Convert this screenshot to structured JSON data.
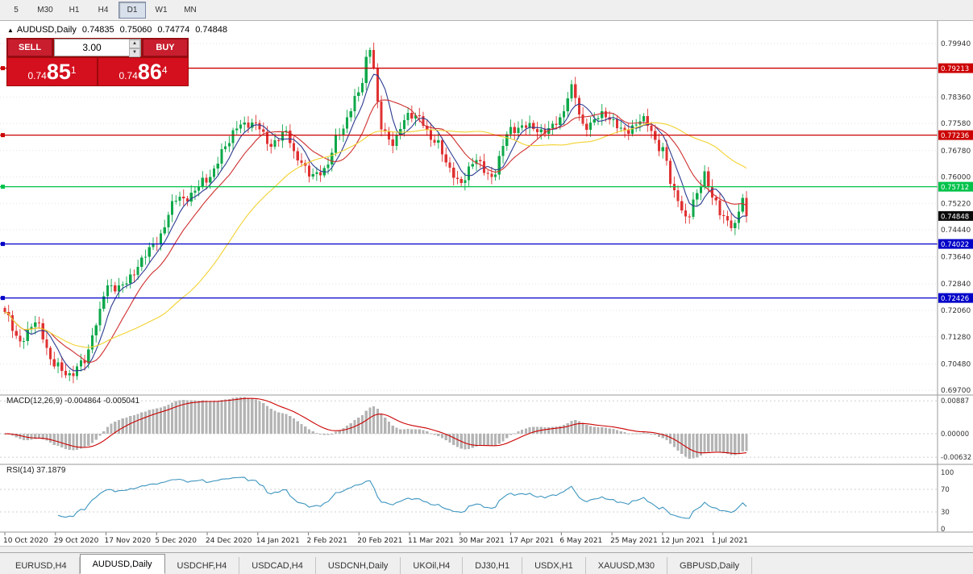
{
  "toolbar": {
    "timeframes": [
      "5",
      "M30",
      "H1",
      "H4",
      "D1",
      "W1",
      "MN"
    ],
    "active": "D1"
  },
  "chart_header": {
    "symbol": "AUDUSD,Daily",
    "open": "0.74835",
    "high": "0.75060",
    "low": "0.74774",
    "close": "0.74848"
  },
  "trade_panel": {
    "sell_label": "SELL",
    "buy_label": "BUY",
    "volume": "3.00",
    "sell_price": {
      "small": "0.74",
      "big": "85",
      "sup": "1"
    },
    "buy_price": {
      "small": "0.74",
      "big": "86",
      "sup": "4"
    }
  },
  "indicators": {
    "macd_header": "MACD(12,26,9) -0.004864 -0.005041",
    "rsi_header": "RSI(14) 37.1879"
  },
  "tabs": {
    "items": [
      "EURUSD,H4",
      "AUDUSD,Daily",
      "USDCHF,H4",
      "USDCAD,H4",
      "USDCNH,Daily",
      "UKOil,H4",
      "DJ30,H1",
      "USDX,H1",
      "XAUUSD,M30",
      "GBPUSD,Daily"
    ],
    "active": "AUDUSD,Daily"
  },
  "chart_data": {
    "type": "candlestick",
    "symbol": "AUDUSD",
    "timeframe": "Daily",
    "up_color": "#0ea84a",
    "down_color": "#e03232",
    "price_range": {
      "top": 0.8056,
      "bottom": 0.6956
    },
    "y_axis_ticks": [
      0.7994,
      0.7836,
      0.7758,
      0.7678,
      0.76,
      0.7522,
      0.7444,
      0.7364,
      0.7284,
      0.7206,
      0.7128,
      0.7048,
      0.697
    ],
    "x_labels": [
      "10 Oct 2020",
      "29 Oct 2020",
      "17 Nov 2020",
      "5 Dec 2020",
      "24 Dec 2020",
      "14 Jan 2021",
      "2 Feb 2021",
      "20 Feb 2021",
      "11 Mar 2021",
      "30 Mar 2021",
      "17 Apr 2021",
      "6 May 2021",
      "25 May 2021",
      "12 Jun 2021",
      "1 Jul 2021"
    ],
    "levels": [
      {
        "price": 0.79213,
        "color": "#cc0000",
        "label": "0.79213"
      },
      {
        "price": 0.77236,
        "color": "#cc0000",
        "label": "0.77236"
      },
      {
        "price": 0.75712,
        "color": "#00c24a",
        "label": "0.75712"
      },
      {
        "price": 0.74022,
        "color": "#0000c8",
        "label": "0.74022"
      },
      {
        "price": 0.72426,
        "color": "#0000c8",
        "label": "0.72426"
      }
    ],
    "current_price": {
      "value": 0.74848,
      "label": "0.74848"
    },
    "candles": {
      "count": 196,
      "noise": [
        0.0009,
        0.0012
      ],
      "anchors": [
        [
          0,
          0.719
        ],
        [
          4,
          0.7125
        ],
        [
          8,
          0.716
        ],
        [
          13,
          0.706
        ],
        [
          17,
          0.7
        ],
        [
          21,
          0.707
        ],
        [
          24,
          0.7165
        ],
        [
          27,
          0.727
        ],
        [
          33,
          0.73
        ],
        [
          40,
          0.742
        ],
        [
          46,
          0.754
        ],
        [
          53,
          0.758
        ],
        [
          58,
          0.77
        ],
        [
          62,
          0.7745
        ],
        [
          66,
          0.777
        ],
        [
          70,
          0.768
        ],
        [
          74,
          0.7745
        ],
        [
          77,
          0.765
        ],
        [
          80,
          0.76
        ],
        [
          84,
          0.763
        ],
        [
          88,
          0.772
        ],
        [
          93,
          0.786
        ],
        [
          96,
          0.797
        ],
        [
          99,
          0.775
        ],
        [
          102,
          0.771
        ],
        [
          106,
          0.777
        ],
        [
          109,
          0.7785
        ],
        [
          113,
          0.77
        ],
        [
          117,
          0.7625
        ],
        [
          120,
          0.759
        ],
        [
          124,
          0.764
        ],
        [
          128,
          0.761
        ],
        [
          133,
          0.773
        ],
        [
          137,
          0.7765
        ],
        [
          141,
          0.772
        ],
        [
          146,
          0.778
        ],
        [
          149,
          0.7855
        ],
        [
          152,
          0.775
        ],
        [
          156,
          0.7785
        ],
        [
          160,
          0.7755
        ],
        [
          164,
          0.7745
        ],
        [
          168,
          0.776
        ],
        [
          173,
          0.769
        ],
        [
          176,
          0.754
        ],
        [
          179,
          0.748
        ],
        [
          182,
          0.756
        ],
        [
          184,
          0.76
        ],
        [
          186,
          0.753
        ],
        [
          189,
          0.749
        ],
        [
          192,
          0.7455
        ],
        [
          194,
          0.753
        ],
        [
          195,
          0.74848
        ]
      ]
    },
    "moving_averages": [
      {
        "window": 6,
        "color": "#2b3a8f"
      },
      {
        "window": 13,
        "color": "#cf2e2e"
      },
      {
        "window": 40,
        "color": "#f2d230"
      }
    ],
    "macd": {
      "params": [
        12,
        26,
        9
      ],
      "value": -0.004864,
      "signal": -0.005041,
      "axis": [
        0.00887,
        0.0,
        -0.00632
      ],
      "histogram_color": "#b4b4b4",
      "signal_color": "#cc0000"
    },
    "rsi": {
      "period": 14,
      "value": 37.1879,
      "axis": [
        100,
        70,
        30,
        0
      ],
      "guides": [
        70,
        30
      ],
      "line_color": "#3d95bf"
    }
  }
}
